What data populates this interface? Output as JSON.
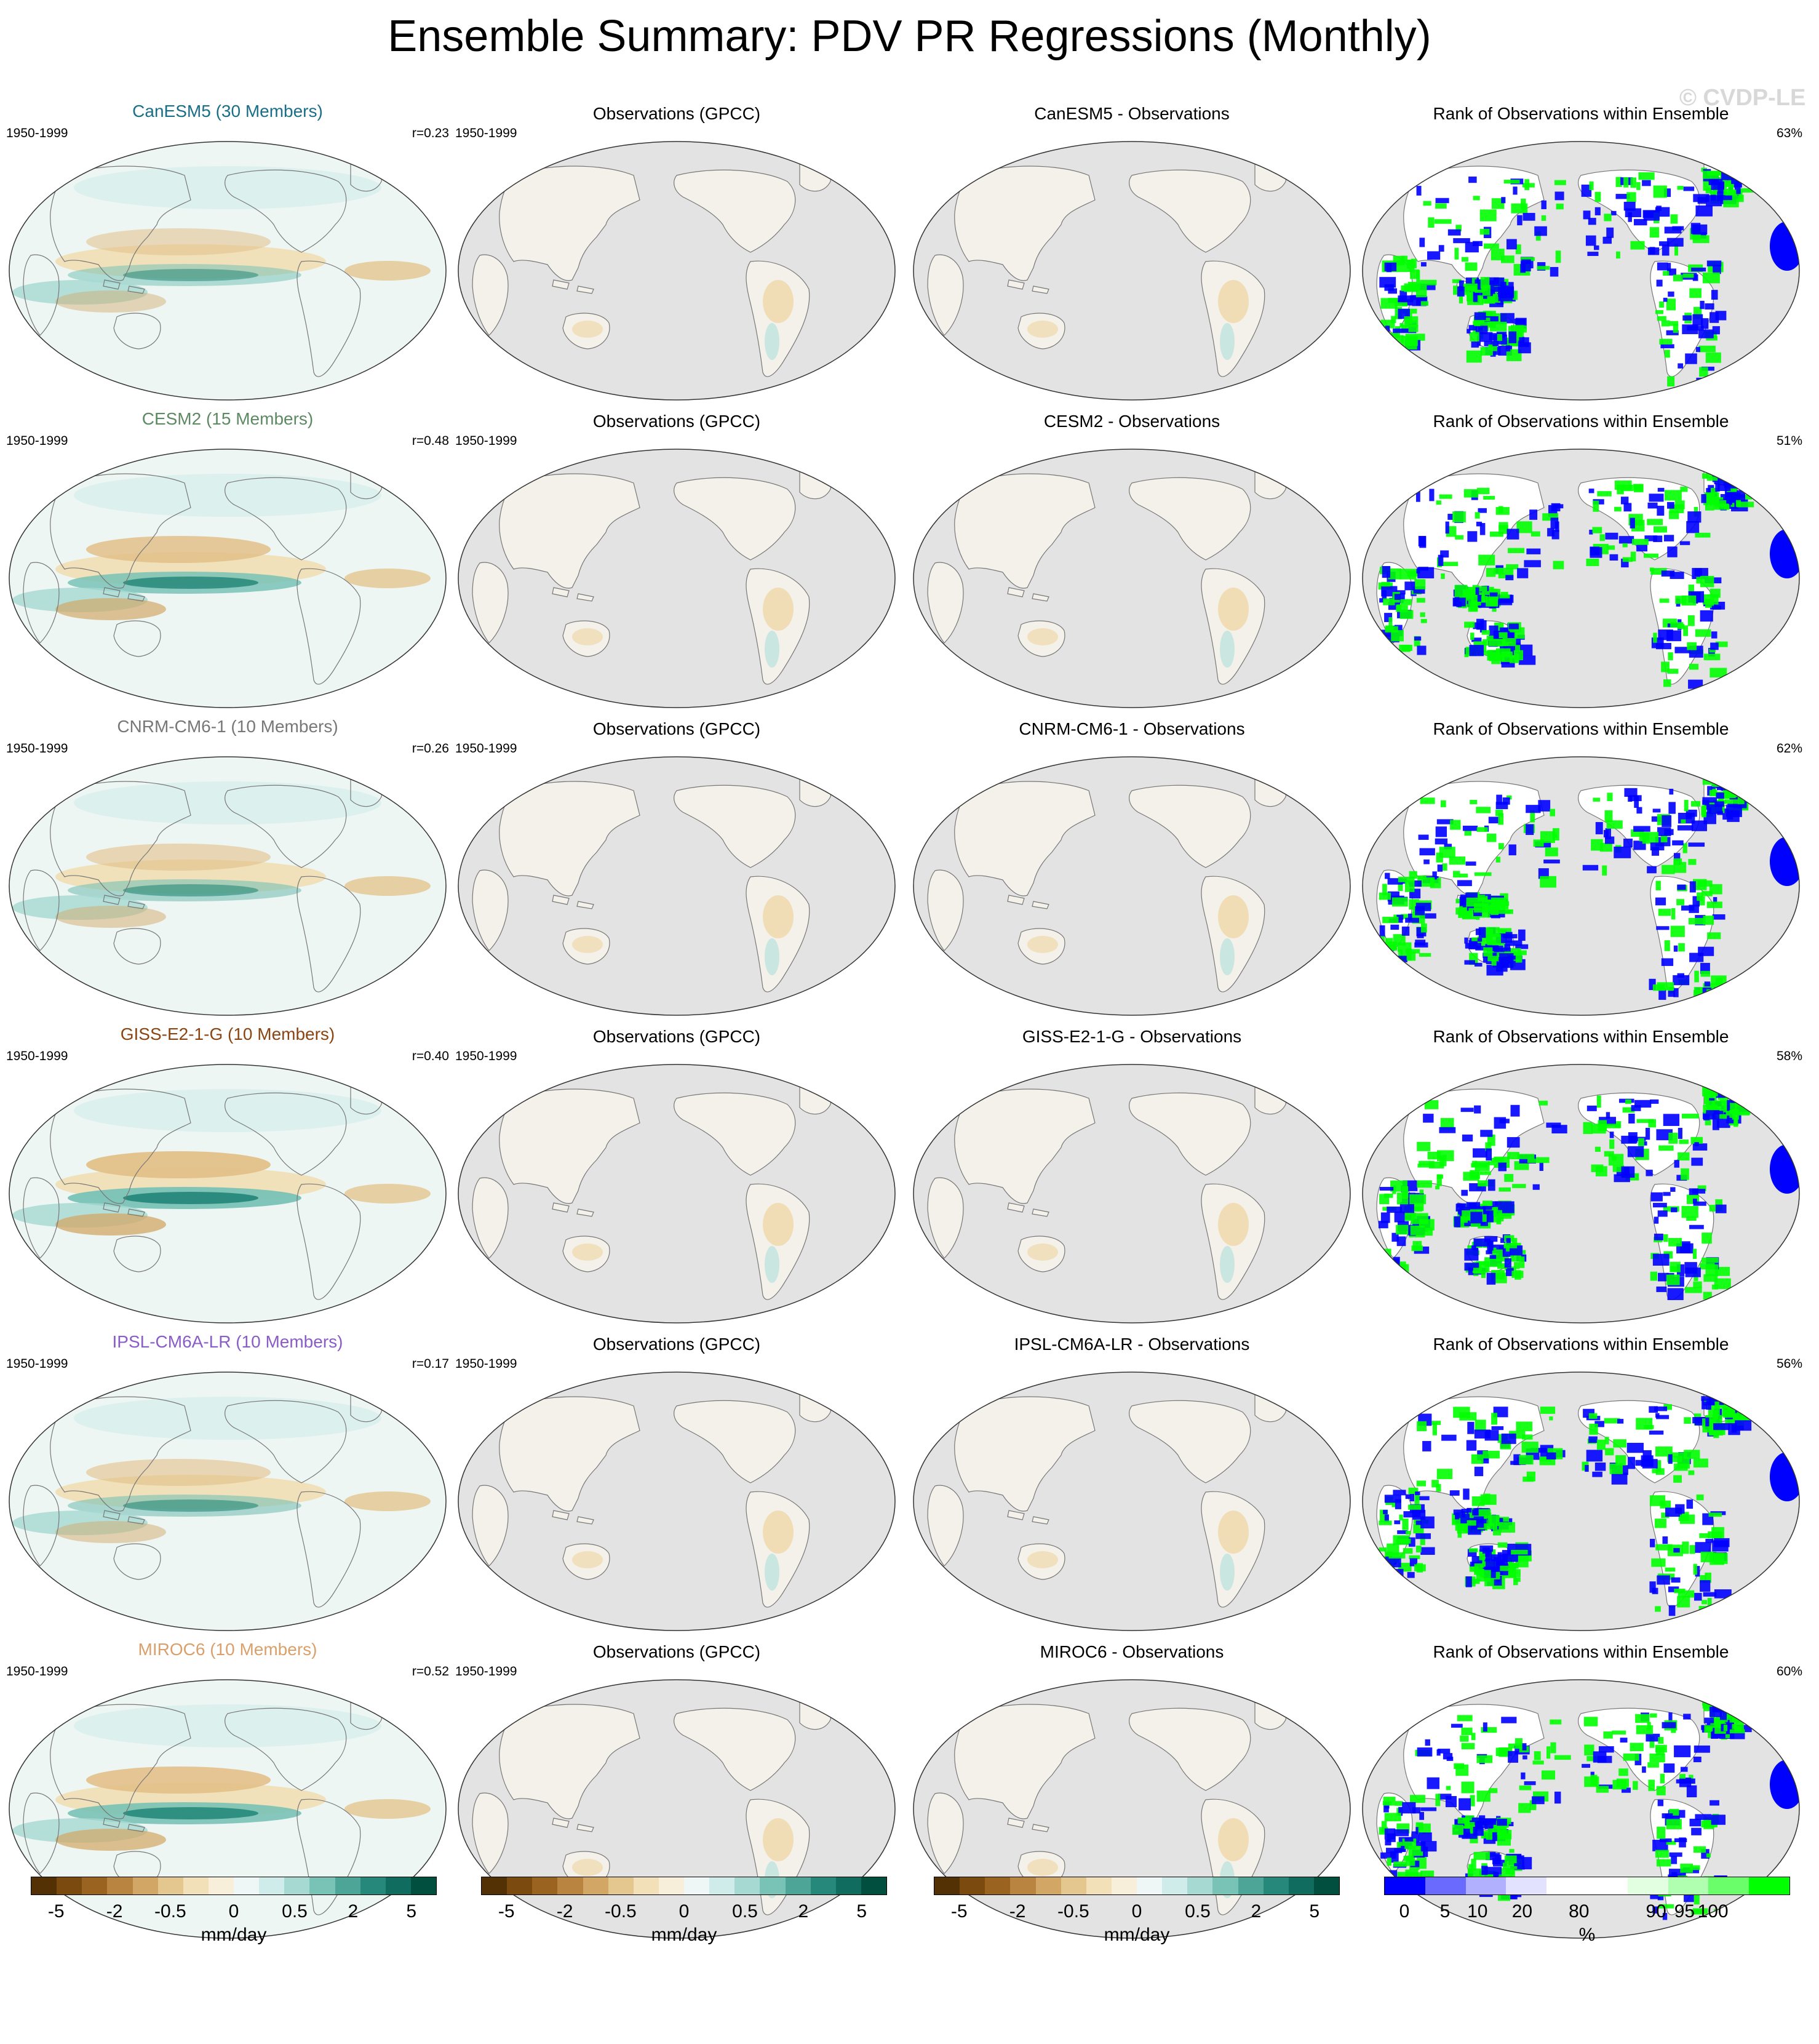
{
  "title": "Ensemble Summary: PDV PR Regressions (Monthly)",
  "watermark": "© CVDP-LE",
  "rows": [
    {
      "model": "CanESM5 (30 Members)",
      "model_color": "#1a6f88",
      "years": "1950-1999",
      "r": "r=0.23",
      "obs": "Observations (GPCC)",
      "obs_years": "1950-1999",
      "diff": "CanESM5 - Observations",
      "rank": "Rank of Observations within Ensemble",
      "rank_pct": "63%"
    },
    {
      "model": "CESM2 (15 Members)",
      "model_color": "#5d8a62",
      "years": "1950-1999",
      "r": "r=0.48",
      "obs": "Observations (GPCC)",
      "obs_years": "1950-1999",
      "diff": "CESM2 - Observations",
      "rank": "Rank of Observations within Ensemble",
      "rank_pct": "51%"
    },
    {
      "model": "CNRM-CM6-1 (10 Members)",
      "model_color": "#777777",
      "years": "1950-1999",
      "r": "r=0.26",
      "obs": "Observations (GPCC)",
      "obs_years": "1950-1999",
      "diff": "CNRM-CM6-1 - Observations",
      "rank": "Rank of Observations within Ensemble",
      "rank_pct": "62%"
    },
    {
      "model": "GISS-E2-1-G (10 Members)",
      "model_color": "#8b4513",
      "years": "1950-1999",
      "r": "r=0.40",
      "obs": "Observations (GPCC)",
      "obs_years": "1950-1999",
      "diff": "GISS-E2-1-G - Observations",
      "rank": "Rank of Observations within Ensemble",
      "rank_pct": "58%"
    },
    {
      "model": "IPSL-CM6A-LR (10 Members)",
      "model_color": "#8a5cc8",
      "years": "1950-1999",
      "r": "r=0.17",
      "obs": "Observations (GPCC)",
      "obs_years": "1950-1999",
      "diff": "IPSL-CM6A-LR - Observations",
      "rank": "Rank of Observations within Ensemble",
      "rank_pct": "56%"
    },
    {
      "model": "MIROC6 (10 Members)",
      "model_color": "#d9a06b",
      "years": "1950-1999",
      "r": "r=0.52",
      "obs": "Observations (GPCC)",
      "obs_years": "1950-1999",
      "diff": "MIROC6 - Observations",
      "rank": "Rank of Observations within Ensemble",
      "rank_pct": "60%"
    }
  ],
  "colorbars": [
    {
      "ticks": [
        "-5",
        "-2",
        "-0.5",
        "0",
        "0.5",
        "2",
        "5"
      ],
      "unit": "mm/day",
      "colors": [
        "#543005",
        "#7a4a0e",
        "#9a6320",
        "#b98440",
        "#d2a766",
        "#e4c68f",
        "#f1e0b8",
        "#f7efda",
        "#eef7f6",
        "#d0ecea",
        "#a5d9d2",
        "#79c2b6",
        "#4da598",
        "#26887a",
        "#0f6c5e",
        "#01503f"
      ]
    },
    {
      "ticks": [
        "-5",
        "-2",
        "-0.5",
        "0",
        "0.5",
        "2",
        "5"
      ],
      "unit": "mm/day",
      "colors": [
        "#543005",
        "#7a4a0e",
        "#9a6320",
        "#b98440",
        "#d2a766",
        "#e4c68f",
        "#f1e0b8",
        "#f7efda",
        "#eef7f6",
        "#d0ecea",
        "#a5d9d2",
        "#79c2b6",
        "#4da598",
        "#26887a",
        "#0f6c5e",
        "#01503f"
      ]
    },
    {
      "ticks": [
        "-5",
        "-2",
        "-0.5",
        "0",
        "0.5",
        "2",
        "5"
      ],
      "unit": "mm/day",
      "colors": [
        "#543005",
        "#7a4a0e",
        "#9a6320",
        "#b98440",
        "#d2a766",
        "#e4c68f",
        "#f1e0b8",
        "#f7efda",
        "#eef7f6",
        "#d0ecea",
        "#a5d9d2",
        "#79c2b6",
        "#4da598",
        "#26887a",
        "#0f6c5e",
        "#01503f"
      ]
    },
    {
      "ticks": [
        "0",
        "5",
        "10",
        "20",
        "80",
        "90",
        "95",
        "100"
      ],
      "unit": "%",
      "colors": [
        "#0000ff",
        "#6a6aff",
        "#b0b0ff",
        "#e2e2ff",
        "#ffffff",
        "#ffffff",
        "#e2ffe2",
        "#b0ffb0",
        "#6aff6a",
        "#00ff00"
      ]
    }
  ]
}
